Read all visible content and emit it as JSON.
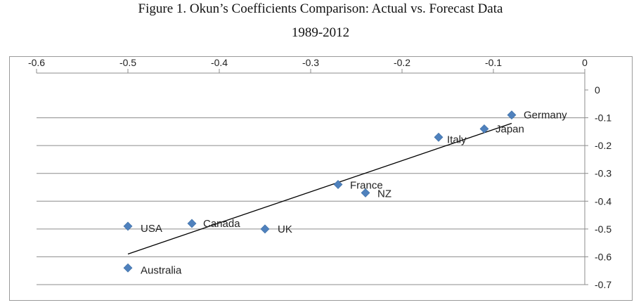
{
  "chart_data": {
    "type": "scatter",
    "title": "Figure 1. Okun’s Coefficients Comparison: Actual vs. Forecast Data",
    "subtitle": "1989-2012",
    "xlabel": "",
    "ylabel": "",
    "xlim": [
      -0.6,
      0
    ],
    "ylim": [
      -0.7,
      0
    ],
    "x_ticks": [
      "-0.6",
      "-0.5",
      "-0.4",
      "-0.3",
      "-0.2",
      "-0.1",
      "0"
    ],
    "y_ticks": [
      "0",
      "-0.1",
      "-0.2",
      "-0.3",
      "-0.4",
      "-0.5",
      "-0.6",
      "-0.7"
    ],
    "x_axis_position": "top",
    "y_axis_position": "right",
    "grid": "horizontal",
    "marker_color": "#4F81BD",
    "points": [
      {
        "label": "Germany",
        "x": -0.08,
        "y": -0.09
      },
      {
        "label": "Japan",
        "x": -0.11,
        "y": -0.14
      },
      {
        "label": "Italy",
        "x": -0.16,
        "y": -0.17
      },
      {
        "label": "France",
        "x": -0.27,
        "y": -0.34
      },
      {
        "label": "NZ",
        "x": -0.24,
        "y": -0.37
      },
      {
        "label": "USA",
        "x": -0.5,
        "y": -0.49
      },
      {
        "label": "Canada",
        "x": -0.43,
        "y": -0.48
      },
      {
        "label": "UK",
        "x": -0.35,
        "y": -0.5
      },
      {
        "label": "Australia",
        "x": -0.5,
        "y": -0.64
      }
    ],
    "trendline": {
      "x1": -0.5,
      "y1": -0.59,
      "x2": -0.08,
      "y2": -0.12
    }
  }
}
